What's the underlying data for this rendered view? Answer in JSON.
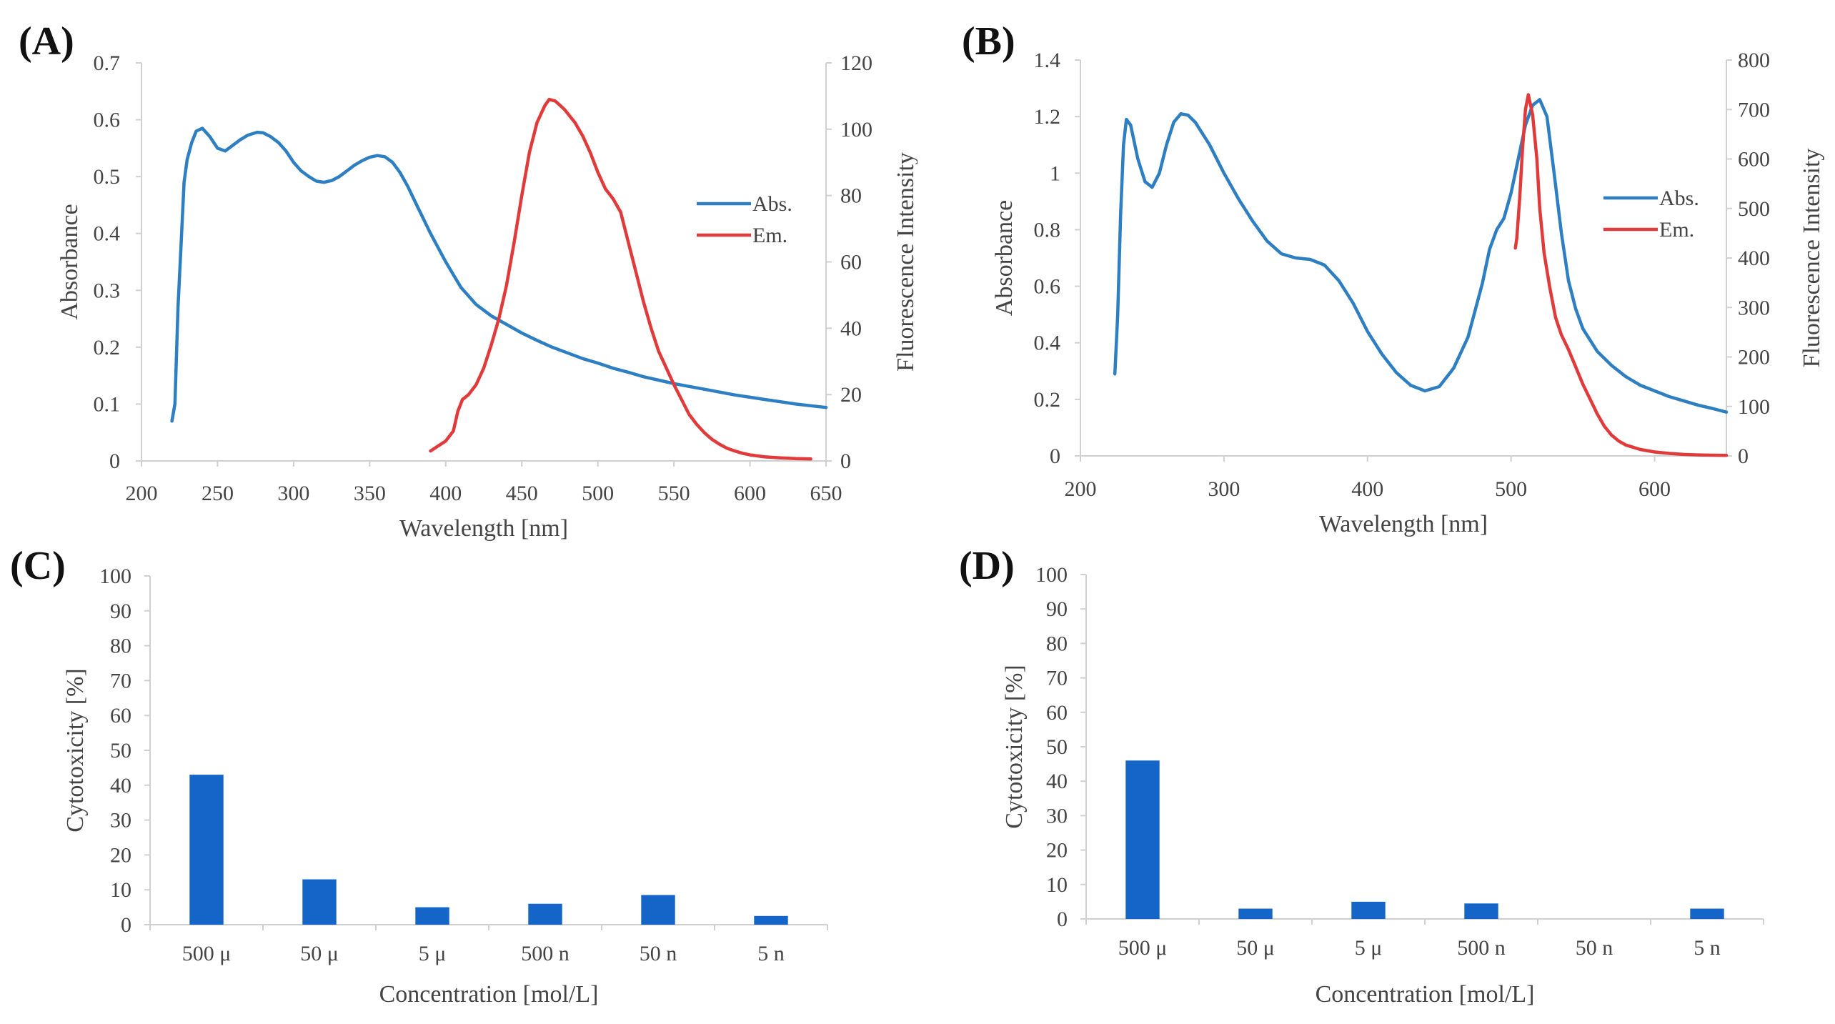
{
  "panels": {
    "a": {
      "label": "(A)"
    },
    "b": {
      "label": "(B)"
    },
    "c": {
      "label": "(C)"
    },
    "d": {
      "label": "(D)"
    }
  },
  "chart_data": [
    {
      "id": "a",
      "type": "line",
      "xlabel": "Wavelength [nm]",
      "ylabel": "Absorbance",
      "y2label": "Fluorescence Intensity",
      "xlim": [
        200,
        650
      ],
      "xticks": [
        200,
        250,
        300,
        350,
        400,
        450,
        500,
        550,
        600,
        650
      ],
      "ylim": [
        0,
        0.7
      ],
      "yticks": [
        "0",
        "0.1",
        "0.2",
        "0.3",
        "0.4",
        "0.5",
        "0.6",
        "0.7"
      ],
      "y2lim": [
        0,
        120
      ],
      "y2ticks": [
        "0",
        "20",
        "40",
        "60",
        "80",
        "100",
        "120"
      ],
      "legend_position": "right",
      "series": [
        {
          "name": "Abs.",
          "axis": "left",
          "color": "#2E7FC2",
          "points": [
            [
              220,
              0.07
            ],
            [
              222,
              0.1
            ],
            [
              224,
              0.27
            ],
            [
              226,
              0.38
            ],
            [
              228,
              0.49
            ],
            [
              230,
              0.53
            ],
            [
              233,
              0.56
            ],
            [
              236,
              0.58
            ],
            [
              240,
              0.585
            ],
            [
              245,
              0.57
            ],
            [
              250,
              0.55
            ],
            [
              255,
              0.545
            ],
            [
              260,
              0.555
            ],
            [
              265,
              0.565
            ],
            [
              270,
              0.573
            ],
            [
              276,
              0.578
            ],
            [
              280,
              0.577
            ],
            [
              285,
              0.57
            ],
            [
              290,
              0.56
            ],
            [
              295,
              0.545
            ],
            [
              300,
              0.525
            ],
            [
              305,
              0.51
            ],
            [
              310,
              0.5
            ],
            [
              315,
              0.492
            ],
            [
              320,
              0.49
            ],
            [
              325,
              0.493
            ],
            [
              330,
              0.5
            ],
            [
              335,
              0.51
            ],
            [
              340,
              0.52
            ],
            [
              345,
              0.528
            ],
            [
              350,
              0.534
            ],
            [
              355,
              0.537
            ],
            [
              360,
              0.535
            ],
            [
              365,
              0.525
            ],
            [
              370,
              0.507
            ],
            [
              375,
              0.483
            ],
            [
              380,
              0.455
            ],
            [
              390,
              0.4
            ],
            [
              400,
              0.35
            ],
            [
              410,
              0.305
            ],
            [
              420,
              0.275
            ],
            [
              430,
              0.255
            ],
            [
              440,
              0.24
            ],
            [
              450,
              0.225
            ],
            [
              460,
              0.212
            ],
            [
              470,
              0.2
            ],
            [
              480,
              0.19
            ],
            [
              490,
              0.18
            ],
            [
              500,
              0.172
            ],
            [
              510,
              0.163
            ],
            [
              520,
              0.156
            ],
            [
              530,
              0.148
            ],
            [
              540,
              0.142
            ],
            [
              550,
              0.136
            ],
            [
              560,
              0.131
            ],
            [
              570,
              0.126
            ],
            [
              580,
              0.121
            ],
            [
              590,
              0.116
            ],
            [
              600,
              0.112
            ],
            [
              610,
              0.108
            ],
            [
              620,
              0.104
            ],
            [
              630,
              0.1
            ],
            [
              640,
              0.097
            ],
            [
              650,
              0.094
            ]
          ]
        },
        {
          "name": "Em.",
          "axis": "right",
          "color": "#E03A3A",
          "points": [
            [
              390,
              3
            ],
            [
              395,
              4.5
            ],
            [
              400,
              6
            ],
            [
              405,
              9
            ],
            [
              408,
              15
            ],
            [
              411,
              18.5
            ],
            [
              415,
              20
            ],
            [
              420,
              23
            ],
            [
              425,
              28
            ],
            [
              430,
              35
            ],
            [
              435,
              43
            ],
            [
              440,
              53
            ],
            [
              445,
              66
            ],
            [
              450,
              80
            ],
            [
              455,
              93
            ],
            [
              460,
              102
            ],
            [
              465,
              107
            ],
            [
              468,
              109
            ],
            [
              472,
              108.5
            ],
            [
              478,
              106
            ],
            [
              485,
              102
            ],
            [
              490,
              98
            ],
            [
              495,
              93
            ],
            [
              500,
              87
            ],
            [
              505,
              82
            ],
            [
              510,
              79
            ],
            [
              515,
              75
            ],
            [
              520,
              66
            ],
            [
              525,
              57
            ],
            [
              530,
              48
            ],
            [
              535,
              40
            ],
            [
              540,
              33
            ],
            [
              545,
              28
            ],
            [
              550,
              23
            ],
            [
              555,
              18.5
            ],
            [
              560,
              14
            ],
            [
              565,
              11
            ],
            [
              570,
              8.5
            ],
            [
              575,
              6.5
            ],
            [
              580,
              5
            ],
            [
              585,
              3.8
            ],
            [
              590,
              3
            ],
            [
              595,
              2.3
            ],
            [
              600,
              1.8
            ],
            [
              610,
              1.2
            ],
            [
              620,
              0.9
            ],
            [
              630,
              0.7
            ],
            [
              640,
              0.6
            ]
          ]
        }
      ]
    },
    {
      "id": "b",
      "type": "line",
      "xlabel": "Wavelength [nm]",
      "ylabel": "Absorbance",
      "y2label": "Fluorescence Intensity",
      "xlim": [
        200,
        650
      ],
      "xticks": [
        200,
        300,
        400,
        500,
        600
      ],
      "ylim": [
        0,
        1.4
      ],
      "yticks": [
        "0",
        "0.2",
        "0.4",
        "0.6",
        "0.8",
        "1",
        "1.2",
        "1.4"
      ],
      "y2lim": [
        0,
        800
      ],
      "y2ticks": [
        "0",
        "100",
        "200",
        "300",
        "400",
        "500",
        "600",
        "700",
        "800"
      ],
      "legend_position": "right",
      "series": [
        {
          "name": "Abs.",
          "axis": "left",
          "color": "#2E7FC2",
          "points": [
            [
              224,
              0.29
            ],
            [
              226,
              0.5
            ],
            [
              228,
              0.85
            ],
            [
              230,
              1.1
            ],
            [
              232,
              1.19
            ],
            [
              235,
              1.17
            ],
            [
              240,
              1.05
            ],
            [
              245,
              0.97
            ],
            [
              250,
              0.95
            ],
            [
              255,
              1.0
            ],
            [
              260,
              1.1
            ],
            [
              265,
              1.18
            ],
            [
              270,
              1.21
            ],
            [
              275,
              1.205
            ],
            [
              280,
              1.18
            ],
            [
              290,
              1.1
            ],
            [
              300,
              1.0
            ],
            [
              310,
              0.91
            ],
            [
              320,
              0.83
            ],
            [
              330,
              0.76
            ],
            [
              340,
              0.715
            ],
            [
              350,
              0.7
            ],
            [
              360,
              0.695
            ],
            [
              370,
              0.675
            ],
            [
              380,
              0.62
            ],
            [
              390,
              0.54
            ],
            [
              400,
              0.44
            ],
            [
              410,
              0.36
            ],
            [
              420,
              0.295
            ],
            [
              430,
              0.25
            ],
            [
              440,
              0.23
            ],
            [
              450,
              0.245
            ],
            [
              460,
              0.31
            ],
            [
              470,
              0.42
            ],
            [
              480,
              0.61
            ],
            [
              485,
              0.73
            ],
            [
              490,
              0.8
            ],
            [
              495,
              0.84
            ],
            [
              500,
              0.93
            ],
            [
              505,
              1.05
            ],
            [
              510,
              1.17
            ],
            [
              515,
              1.24
            ],
            [
              520,
              1.26
            ],
            [
              525,
              1.2
            ],
            [
              530,
              1.0
            ],
            [
              535,
              0.79
            ],
            [
              540,
              0.62
            ],
            [
              545,
              0.52
            ],
            [
              550,
              0.45
            ],
            [
              560,
              0.37
            ],
            [
              570,
              0.32
            ],
            [
              580,
              0.28
            ],
            [
              590,
              0.25
            ],
            [
              600,
              0.23
            ],
            [
              610,
              0.21
            ],
            [
              620,
              0.195
            ],
            [
              630,
              0.18
            ],
            [
              640,
              0.168
            ],
            [
              650,
              0.155
            ]
          ]
        },
        {
          "name": "Em.",
          "axis": "right",
          "color": "#E03A3A",
          "points": [
            [
              503,
              420
            ],
            [
              504,
              440
            ],
            [
              506,
              520
            ],
            [
              508,
              620
            ],
            [
              510,
              700
            ],
            [
              512,
              730
            ],
            [
              515,
              690
            ],
            [
              518,
              600
            ],
            [
              520,
              500
            ],
            [
              523,
              410
            ],
            [
              527,
              340
            ],
            [
              531,
              280
            ],
            [
              535,
              245
            ],
            [
              540,
              215
            ],
            [
              545,
              180
            ],
            [
              550,
              145
            ],
            [
              555,
              115
            ],
            [
              560,
              85
            ],
            [
              565,
              60
            ],
            [
              570,
              42
            ],
            [
              575,
              30
            ],
            [
              580,
              22
            ],
            [
              590,
              13
            ],
            [
              600,
              8
            ],
            [
              610,
              5
            ],
            [
              620,
              3
            ],
            [
              630,
              2
            ],
            [
              640,
              1.5
            ],
            [
              650,
              1
            ]
          ]
        }
      ]
    },
    {
      "id": "c",
      "type": "bar",
      "xlabel": "Concentration [mol/L]",
      "ylabel": "Cytotoxicity [%]",
      "ylim": [
        0,
        100
      ],
      "yticks": [
        "0",
        "10",
        "20",
        "30",
        "40",
        "50",
        "60",
        "70",
        "80",
        "90",
        "100"
      ],
      "color": "#1565C8",
      "categories": [
        "500 μ",
        "50 μ",
        "5 μ",
        "500 n",
        "50 n",
        "5 n"
      ],
      "values": [
        43,
        13,
        5,
        6,
        8.5,
        2.5
      ]
    },
    {
      "id": "d",
      "type": "bar",
      "xlabel": "Concentration [mol/L]",
      "ylabel": "Cytotoxicity [%]",
      "ylim": [
        0,
        100
      ],
      "yticks": [
        "0",
        "10",
        "20",
        "30",
        "40",
        "50",
        "60",
        "70",
        "80",
        "90",
        "100"
      ],
      "color": "#1565C8",
      "categories": [
        "500 μ",
        "50 μ",
        "5 μ",
        "500 n",
        "50 n",
        "5 n"
      ],
      "values": [
        46,
        3,
        5,
        4.5,
        0,
        3
      ]
    }
  ]
}
